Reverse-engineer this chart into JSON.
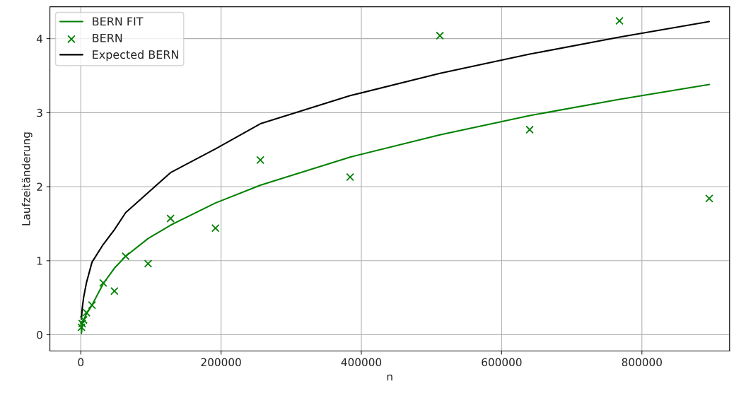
{
  "chart_data": {
    "type": "line",
    "xlabel": "n",
    "ylabel": "Laufzeitänderung",
    "x": [
      1000,
      2000,
      4000,
      8000,
      16000,
      32000,
      48000,
      64000,
      96000,
      128000,
      192000,
      256000,
      384000,
      512000,
      640000,
      768000,
      896000
    ],
    "series": [
      {
        "name": "BERN FIT",
        "color": "#008000",
        "marker": "none",
        "values": [
          0.02,
          0.13,
          0.2,
          0.28,
          0.4,
          0.69,
          0.9,
          1.06,
          1.3,
          1.48,
          1.78,
          2.02,
          2.4,
          2.7,
          2.96,
          3.18,
          3.38
        ]
      },
      {
        "name": "BERN",
        "type": "scatter",
        "color": "#008000",
        "marker": "cross",
        "values": [
          0.1,
          0.15,
          0.2,
          0.3,
          0.4,
          0.7,
          0.59,
          1.06,
          0.96,
          1.57,
          1.44,
          2.36,
          2.13,
          4.04,
          2.77,
          4.24,
          1.84
        ]
      },
      {
        "name": "Expected BERN",
        "color": "#000000",
        "marker": "none",
        "values": [
          0.21,
          0.35,
          0.5,
          0.7,
          0.98,
          1.22,
          1.42,
          1.65,
          1.92,
          2.19,
          2.51,
          2.85,
          3.23,
          3.53,
          3.79,
          4.02,
          4.23
        ]
      }
    ],
    "xlim": [
      -44000,
      925000
    ],
    "ylim": [
      -0.22,
      4.43
    ],
    "xticks": [
      0,
      200000,
      400000,
      600000,
      800000
    ],
    "yticks": [
      0,
      1,
      2,
      3,
      4
    ],
    "grid": true,
    "legend": "top left"
  }
}
